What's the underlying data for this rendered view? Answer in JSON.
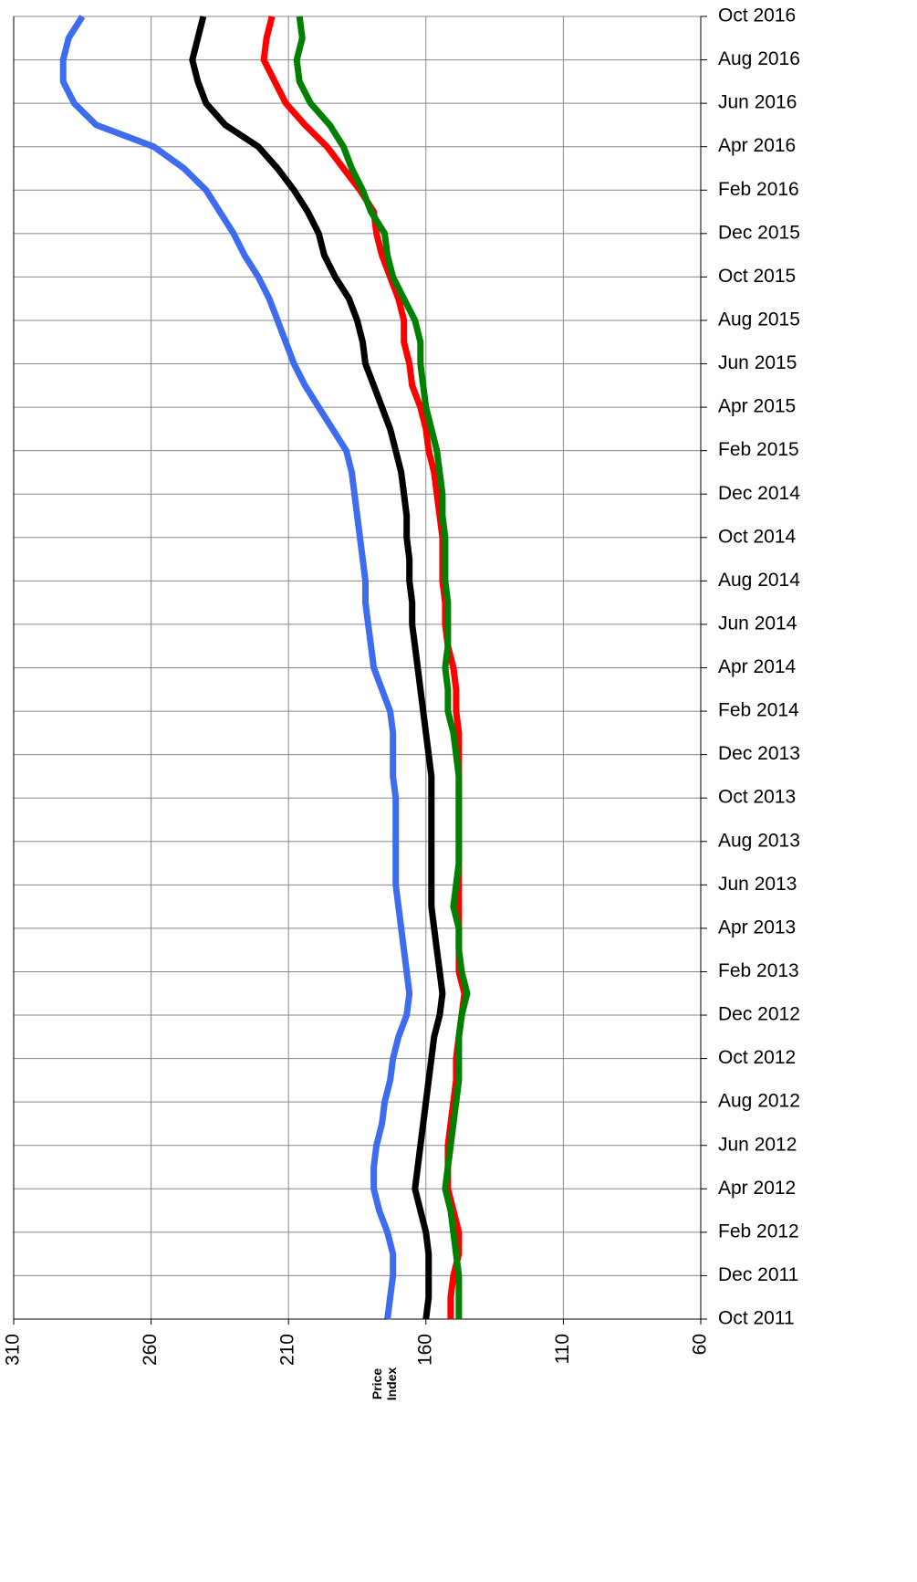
{
  "chart_data": {
    "type": "line",
    "orientation": "horizontal-values",
    "x_label": "Price Index",
    "categories": [
      "Oct 2011",
      null,
      "Dec 2011",
      null,
      "Feb 2012",
      null,
      "Apr 2012",
      null,
      "Jun 2012",
      null,
      "Aug 2012",
      null,
      "Oct 2012",
      null,
      "Dec 2012",
      null,
      "Feb 2013",
      null,
      "Apr 2013",
      null,
      "Jun 2013",
      null,
      "Aug 2013",
      null,
      "Oct 2013",
      null,
      "Dec 2013",
      null,
      "Feb 2014",
      null,
      "Apr 2014",
      null,
      "Jun 2014",
      null,
      "Aug 2014",
      null,
      "Oct 2014",
      null,
      "Dec 2014",
      null,
      "Feb 2015",
      null,
      "Apr 2015",
      null,
      "Jun 2015",
      null,
      "Aug 2015",
      null,
      "Oct 2015",
      null,
      "Dec 2015",
      null,
      "Feb 2016",
      null,
      "Apr 2016",
      null,
      "Jun 2016",
      null,
      "Aug 2016",
      null,
      "Oct 2016"
    ],
    "series": [
      {
        "color": "#3d6cf0",
        "values": [
          174,
          173,
          172,
          172,
          174,
          177,
          179,
          179,
          178,
          176,
          175,
          173,
          172,
          170,
          167,
          166,
          167,
          168,
          169,
          170,
          171,
          171,
          171,
          171,
          171,
          172,
          172,
          172,
          173,
          176,
          179,
          180,
          181,
          182,
          182,
          183,
          184,
          185,
          186,
          187,
          189,
          194,
          199,
          204,
          208,
          211,
          214,
          217,
          221,
          226,
          230,
          235,
          240,
          248,
          259,
          280,
          288,
          292,
          292,
          290,
          285
        ]
      },
      {
        "color": "#000000",
        "values": [
          160,
          159,
          159,
          159,
          160,
          162,
          164,
          163,
          162,
          161,
          160,
          159,
          158,
          157,
          155,
          154,
          155,
          156,
          157,
          158,
          158,
          158,
          158,
          158,
          158,
          158,
          159,
          160,
          161,
          162,
          163,
          164,
          165,
          165,
          166,
          166,
          167,
          167,
          168,
          169,
          171,
          173,
          176,
          179,
          182,
          183,
          185,
          188,
          193,
          197,
          199,
          203,
          208,
          214,
          221,
          233,
          240,
          243,
          245,
          243,
          241
        ]
      },
      {
        "color": "#ff0000",
        "values": [
          151,
          151,
          150,
          148,
          148,
          150,
          152,
          152,
          152,
          151,
          150,
          149,
          149,
          148,
          147,
          146,
          148,
          148,
          148,
          148,
          148,
          148,
          148,
          148,
          148,
          148,
          148,
          148,
          149,
          149,
          150,
          152,
          153,
          153,
          154,
          154,
          154,
          155,
          156,
          157,
          159,
          160,
          162,
          165,
          166,
          168,
          168,
          170,
          173,
          176,
          178,
          179,
          184,
          190,
          196,
          204,
          211,
          215,
          219,
          218,
          216
        ]
      },
      {
        "color": "#008000",
        "values": [
          148,
          148,
          148,
          149,
          150,
          151,
          153,
          152,
          151,
          150,
          149,
          148,
          148,
          148,
          147,
          145,
          147,
          148,
          148,
          150,
          149,
          148,
          148,
          148,
          148,
          148,
          149,
          150,
          152,
          152,
          153,
          152,
          152,
          152,
          153,
          153,
          153,
          154,
          154,
          155,
          156,
          158,
          160,
          161,
          162,
          162,
          164,
          168,
          172,
          174,
          175,
          180,
          183,
          187,
          190,
          195,
          202,
          206,
          207,
          205,
          206
        ]
      }
    ],
    "xlim": [
      310,
      60
    ],
    "xticks": [
      310,
      260,
      210,
      160,
      110,
      60
    ],
    "grid": true
  }
}
